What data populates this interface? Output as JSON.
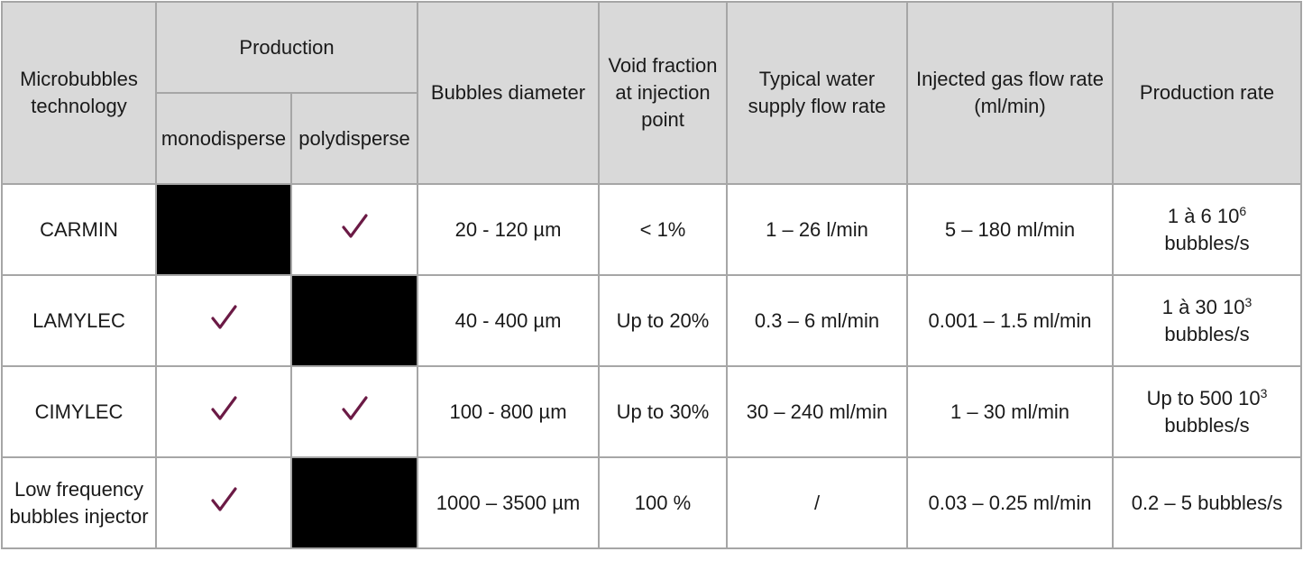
{
  "header": {
    "technology": "Microbubbles technology",
    "production": "Production",
    "monodisperse": "monodisperse",
    "polydisperse": "polydisperse",
    "diameter": "Bubbles diameter",
    "void_fraction": "Void fraction at injection point",
    "water_flow": "Typical water supply flow rate",
    "gas_flow": "Injected gas flow rate (ml/min)",
    "production_rate": "Production rate"
  },
  "rows": [
    {
      "technology": "CARMIN",
      "diameter": "20 - 120 µm",
      "void_fraction": "< 1%",
      "water_flow": "1 – 26 l/min",
      "gas_flow": "5 – 180 ml/min",
      "production_rate": {
        "base": "1 à 6 10",
        "exponent": "6",
        "unit": "bubbles/s"
      }
    },
    {
      "technology": "LAMYLEC",
      "diameter": "40 - 400 µm",
      "void_fraction": "Up to 20%",
      "water_flow": "0.3 – 6 ml/min",
      "gas_flow": "0.001 – 1.5 ml/min",
      "production_rate": {
        "base": "1 à 30 10",
        "exponent": "3",
        "unit": "bubbles/s"
      }
    },
    {
      "technology": "CIMYLEC",
      "diameter": "100 - 800 µm",
      "void_fraction": "Up to 30%",
      "water_flow": "30 – 240 ml/min",
      "gas_flow": "1 – 30 ml/min",
      "production_rate": {
        "base": "Up to 500 10",
        "exponent": "3",
        "unit": "bubbles/s"
      }
    },
    {
      "technology": "Low frequency bubbles injector",
      "diameter": "1000 – 3500 µm",
      "void_fraction": "100 %",
      "water_flow": "/",
      "gas_flow": "0.03 – 0.25 ml/min",
      "production_rate": "0.2 – 5 bubbles/s"
    }
  ]
}
